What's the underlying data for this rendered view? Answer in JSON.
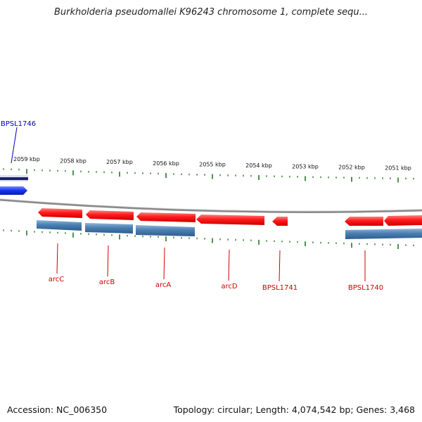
{
  "title": "Burkholderia pseudomallei K96243 chromosome 1, complete sequ...",
  "footer": {
    "accession": "Accession: NC_006350",
    "summary": "Topology: circular; Length: 4,074,542 bp; Genes: 3,468"
  },
  "colors": {
    "forward": "#ee1111",
    "reverse_cds": "#4477aa",
    "selected": "#1133ee",
    "tick": "#227722",
    "backbone": "#888888",
    "label_forward": "#cc0000",
    "label_selected": "#0000bb"
  },
  "ticks": [
    {
      "label": "2059 kbp"
    },
    {
      "label": "2058 kbp"
    },
    {
      "label": "2057 kbp"
    },
    {
      "label": "2056 kbp"
    },
    {
      "label": "2055 kbp"
    },
    {
      "label": "2054 kbp"
    },
    {
      "label": "2053 kbp"
    },
    {
      "label": "2052 kbp"
    },
    {
      "label": "2051 kbp"
    }
  ],
  "genes": [
    {
      "name": "arcC"
    },
    {
      "name": "arcB"
    },
    {
      "name": "arcA"
    },
    {
      "name": "arcD"
    },
    {
      "name": "BPSL1741"
    },
    {
      "name": "BPSL1740"
    },
    {
      "name": "BPSL1746"
    }
  ]
}
